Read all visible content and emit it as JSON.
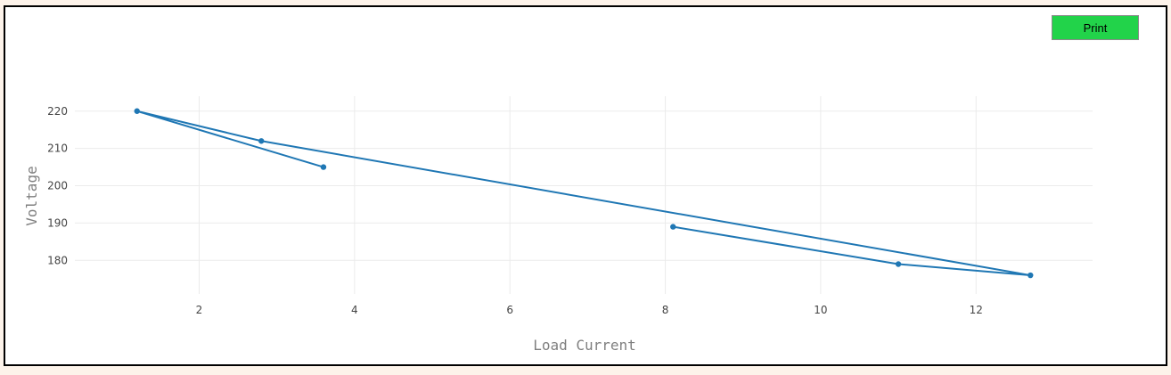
{
  "toolbar": {
    "print_label": "Print"
  },
  "chart_data": {
    "type": "line",
    "title": "",
    "xlabel": "Load Current",
    "ylabel": "Voltage",
    "xlim": [
      0.4,
      13.5
    ],
    "ylim": [
      171,
      224
    ],
    "x_ticks": [
      2,
      4,
      6,
      8,
      10,
      12
    ],
    "y_ticks": [
      180,
      190,
      200,
      210,
      220
    ],
    "grid": true,
    "legend": "none",
    "series": [
      {
        "color": "#1f77b4",
        "x": [
          3.6,
          1.2,
          2.8,
          12.7,
          11.0,
          8.1
        ],
        "y": [
          205,
          220,
          212,
          176,
          179,
          189
        ]
      }
    ]
  }
}
